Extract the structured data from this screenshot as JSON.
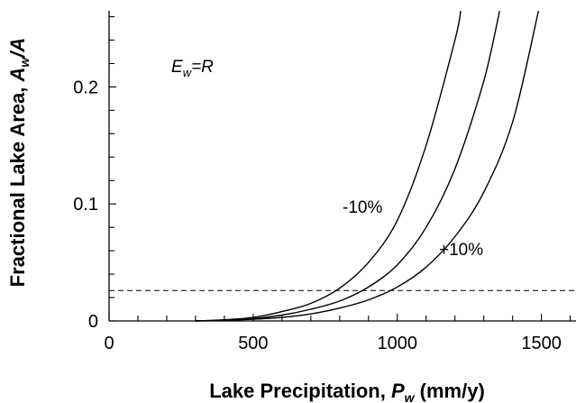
{
  "chart_data": {
    "type": "line",
    "xlabel": {
      "base": "Lake Precipitation, ",
      "var": "P",
      "sub": "w",
      "unit": " (mm/y)"
    },
    "ylabel": {
      "base": "Fractional Lake Area, ",
      "var": "A",
      "sub": "w",
      "tail": "/A"
    },
    "xlim": [
      0,
      1620
    ],
    "ylim": [
      0,
      0.265
    ],
    "x_ticks": [
      0,
      500,
      1000,
      1500
    ],
    "x_tick_labels": [
      "0",
      "500",
      "1000",
      "1500"
    ],
    "x_minor_step": 100,
    "y_ticks": [
      0,
      0.1,
      0.2
    ],
    "y_tick_labels": [
      "0",
      "0.1",
      "0.2"
    ],
    "y_minor_step": 0.02,
    "grid": false,
    "series": [
      {
        "name": "-10%",
        "x": [
          300,
          400,
          500,
          600,
          700,
          800,
          900,
          1000,
          1100,
          1200,
          1220
        ],
        "y": [
          0.0,
          0.001,
          0.003,
          0.008,
          0.015,
          0.028,
          0.05,
          0.086,
          0.15,
          0.24,
          0.265
        ]
      },
      {
        "name": "",
        "x": [
          300,
          400,
          500,
          600,
          700,
          800,
          900,
          1000,
          1100,
          1200,
          1300,
          1355
        ],
        "y": [
          0.0,
          0.0008,
          0.002,
          0.005,
          0.01,
          0.017,
          0.029,
          0.048,
          0.08,
          0.13,
          0.205,
          0.265
        ]
      },
      {
        "name": "+10%",
        "x": [
          300,
          400,
          500,
          600,
          700,
          800,
          900,
          1000,
          1100,
          1200,
          1300,
          1400,
          1490
        ],
        "y": [
          0.0,
          0.0005,
          0.0015,
          0.003,
          0.006,
          0.011,
          0.018,
          0.029,
          0.046,
          0.072,
          0.11,
          0.17,
          0.265
        ]
      }
    ],
    "reference_line": {
      "y": 0.026,
      "style": "dashed"
    },
    "annotations": [
      {
        "var": "E",
        "sub": "w",
        "rest": "=R"
      },
      {
        "text": "-10%"
      },
      {
        "text": "+10%"
      }
    ]
  }
}
